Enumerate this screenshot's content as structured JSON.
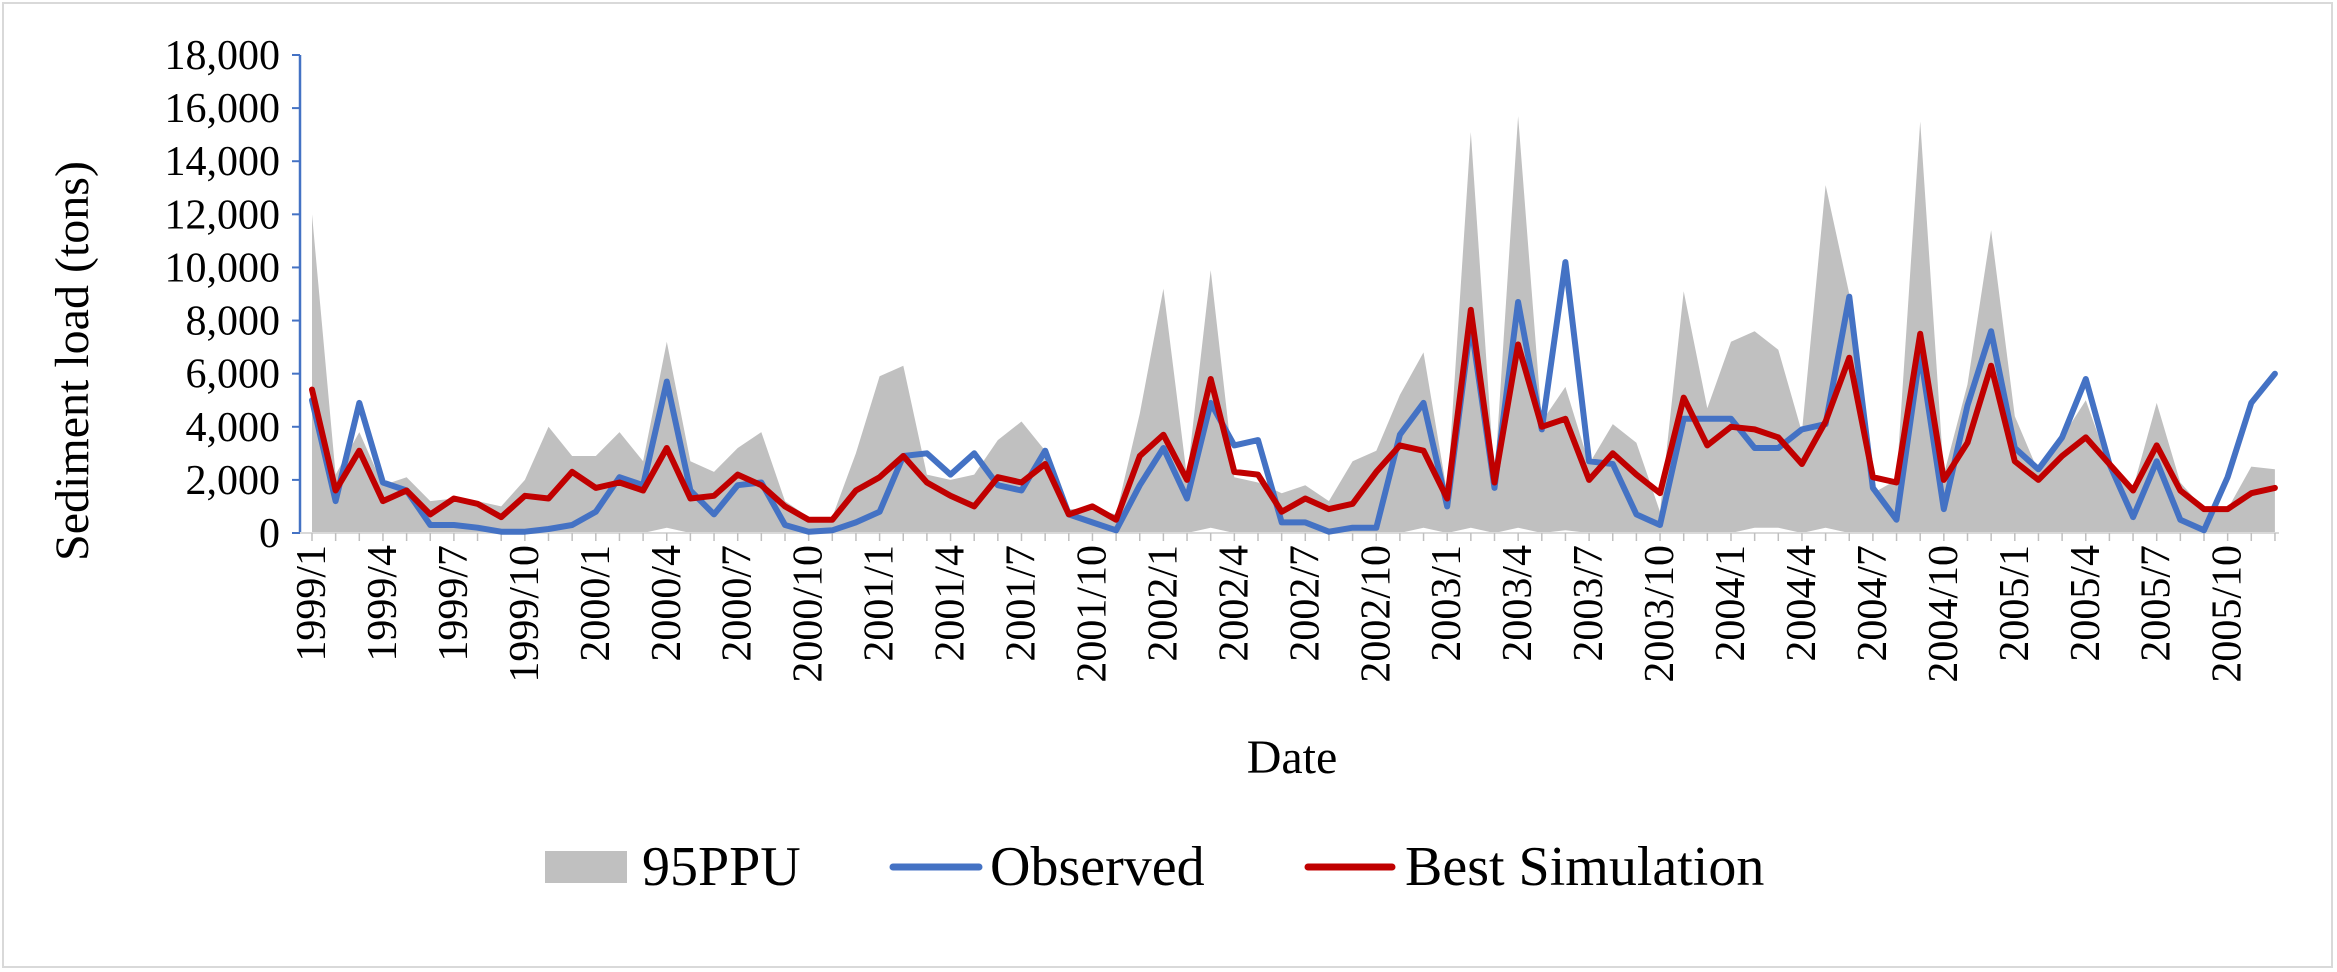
{
  "chart_data": {
    "type": "area+line",
    "title": "",
    "xlabel": "Date",
    "ylabel": "Sediment load (tons)",
    "ylim": [
      0,
      18000
    ],
    "yticks": [
      0,
      2000,
      4000,
      6000,
      8000,
      10000,
      12000,
      14000,
      16000,
      18000
    ],
    "ytick_labels": [
      "0",
      "2,000",
      "4,000",
      "6,000",
      "8,000",
      "10,000",
      "12,000",
      "14,000",
      "16,000",
      "18,000"
    ],
    "x_start": "1999/1",
    "n_points": 84,
    "xtick_labels": [
      "1999/1",
      "1999/4",
      "1999/7",
      "1999/10",
      "2000/1",
      "2000/4",
      "2000/7",
      "2000/10",
      "2001/1",
      "2001/4",
      "2001/7",
      "2001/10",
      "2002/1",
      "2002/4",
      "2002/7",
      "2002/10",
      "2003/1",
      "2003/4",
      "2003/7",
      "2003/10",
      "2004/1",
      "2004/4",
      "2004/7",
      "2004/10",
      "2005/1",
      "2005/4",
      "2005/7",
      "2005/10"
    ],
    "legend": {
      "position": "bottom",
      "labels": [
        "95PPU",
        "Observed",
        "Best Simulation"
      ]
    },
    "colors": {
      "band": "#c0c0c0",
      "observed": "#4472c4",
      "simulation": "#c00000"
    },
    "series": [
      {
        "name": "95PPU upper",
        "values": [
          12000,
          2200,
          3800,
          1800,
          2100,
          1200,
          1300,
          1200,
          1000,
          2000,
          4000,
          2900,
          2900,
          3800,
          2700,
          7200,
          2700,
          2300,
          3200,
          3800,
          1200,
          600,
          600,
          3000,
          5900,
          6300,
          2200,
          2000,
          2200,
          3500,
          4200,
          3100,
          900,
          900,
          700,
          4500,
          9200,
          2100,
          9900,
          2100,
          1900,
          1500,
          1800,
          1200,
          2700,
          3100,
          5200,
          6800,
          1500,
          15100,
          2000,
          15700,
          4200,
          5500,
          2600,
          4100,
          3400,
          800,
          9100,
          4700,
          7200,
          7600,
          6900,
          3800,
          13100,
          9000,
          1500,
          2000,
          15500,
          2200,
          5600,
          11400,
          4400,
          2300,
          3600,
          5000,
          2500,
          1700,
          4900,
          1900,
          900,
          900,
          2500,
          2400
        ]
      },
      {
        "name": "95PPU lower",
        "values": [
          0,
          0,
          0,
          0,
          0,
          0,
          0,
          0,
          0,
          0,
          0,
          0,
          0,
          0,
          0,
          200,
          0,
          0,
          0,
          0,
          0,
          0,
          0,
          0,
          0,
          0,
          0,
          0,
          0,
          0,
          0,
          0,
          0,
          0,
          0,
          0,
          0,
          0,
          200,
          0,
          0,
          0,
          0,
          0,
          0,
          0,
          0,
          200,
          0,
          200,
          0,
          200,
          0,
          100,
          0,
          0,
          0,
          0,
          0,
          0,
          0,
          200,
          200,
          0,
          200,
          0,
          0,
          0,
          0,
          0,
          0,
          0,
          0,
          0,
          0,
          0,
          0,
          0,
          0,
          0,
          0,
          0,
          0,
          0
        ]
      },
      {
        "name": "Observed",
        "values": [
          5000,
          1200,
          4900,
          1900,
          1600,
          300,
          300,
          200,
          50,
          50,
          150,
          300,
          800,
          2100,
          1800,
          5700,
          1600,
          700,
          1800,
          1900,
          300,
          50,
          100,
          400,
          800,
          2900,
          3000,
          2200,
          3000,
          1800,
          1600,
          3100,
          700,
          400,
          100,
          1800,
          3200,
          1300,
          4900,
          3300,
          3500,
          400,
          400,
          50,
          200,
          200,
          3700,
          4900,
          1000,
          7900,
          1700,
          8700,
          3900,
          10200,
          2700,
          2600,
          700,
          300,
          4300,
          4300,
          4300,
          3200,
          3200,
          3900,
          4100,
          8900,
          1700,
          500,
          6800,
          900,
          4800,
          7600,
          3200,
          2400,
          3600,
          5800,
          2600,
          600,
          2700,
          500,
          100,
          2100,
          4900,
          6000
        ]
      },
      {
        "name": "Best Simulation",
        "values": [
          5400,
          1600,
          3100,
          1200,
          1600,
          700,
          1300,
          1100,
          600,
          1400,
          1300,
          2300,
          1700,
          1900,
          1600,
          3200,
          1300,
          1400,
          2200,
          1800,
          1000,
          500,
          500,
          1600,
          2100,
          2900,
          1900,
          1400,
          1000,
          2100,
          1900,
          2600,
          700,
          1000,
          500,
          2900,
          3700,
          2000,
          5800,
          2300,
          2200,
          800,
          1300,
          900,
          1100,
          2300,
          3300,
          3100,
          1300,
          8400,
          1900,
          7100,
          4000,
          4300,
          2000,
          3000,
          2200,
          1500,
          5100,
          3300,
          4000,
          3900,
          3600,
          2600,
          4200,
          6600,
          2100,
          1900,
          7500,
          2000,
          3400,
          6300,
          2700,
          2000,
          2900,
          3600,
          2600,
          1600,
          3300,
          1600,
          900,
          900,
          1500,
          1700
        ]
      }
    ]
  }
}
